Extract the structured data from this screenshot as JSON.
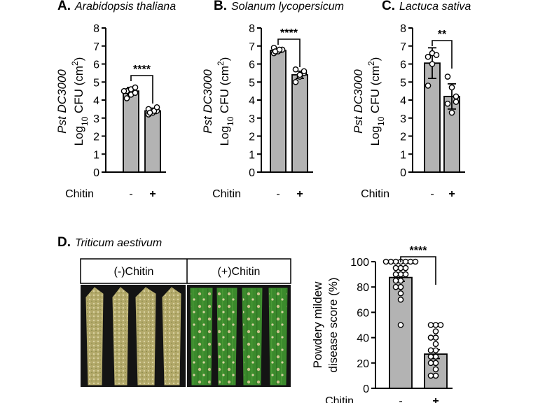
{
  "chart_data": [
    {
      "id": "A",
      "type": "bar",
      "panel_letter": "A.",
      "title": "Arabidopsis thaliana",
      "ylabel_italic": "Pst DC3000",
      "ylabel": "Log10 CFU (cm2)",
      "ylabel_parts": [
        "Log",
        "10",
        " CFU (cm",
        "2",
        ")"
      ],
      "ylim": [
        0,
        8
      ],
      "yticks": [
        "0",
        "1",
        "2",
        "3",
        "4",
        "5",
        "6",
        "7",
        "8"
      ],
      "xaxis_title": "Chitin",
      "categories": [
        "-",
        "+"
      ],
      "values": [
        4.5,
        3.4
      ],
      "errors": [
        0.2,
        0.15
      ],
      "points": [
        [
          4.1,
          4.3,
          4.4,
          4.5,
          4.6,
          4.7,
          4.5
        ],
        [
          3.2,
          3.3,
          3.4,
          3.5,
          3.4,
          3.6,
          3.3
        ]
      ],
      "significance": "****"
    },
    {
      "id": "B",
      "type": "bar",
      "panel_letter": "B.",
      "title": "Solanum lycopersicum",
      "ylabel_italic": "Pst DC3000",
      "ylabel": "Log10 CFU (cm2)",
      "ylabel_parts": [
        "Log",
        "10",
        " CFU (cm",
        "2",
        ")"
      ],
      "ylim": [
        0,
        8
      ],
      "yticks": [
        "0",
        "1",
        "2",
        "3",
        "4",
        "5",
        "6",
        "7",
        "8"
      ],
      "xaxis_title": "Chitin",
      "categories": [
        "-",
        "+"
      ],
      "values": [
        6.75,
        5.4
      ],
      "errors": [
        0.1,
        0.2
      ],
      "points": [
        [
          6.6,
          6.7,
          6.8,
          6.9,
          6.7,
          6.8
        ],
        [
          5.0,
          5.3,
          5.5,
          5.7,
          5.4,
          5.6
        ]
      ],
      "significance": "****"
    },
    {
      "id": "C",
      "type": "bar",
      "panel_letter": "C.",
      "title": "Lactuca sativa",
      "ylabel_italic": "Pst DC3000",
      "ylabel": "Log10 CFU (cm2)",
      "ylabel_parts": [
        "Log",
        "10",
        " CFU (cm",
        "2",
        ")"
      ],
      "ylim": [
        0,
        8
      ],
      "yticks": [
        "0",
        "1",
        "2",
        "3",
        "4",
        "5",
        "6",
        "7",
        "8"
      ],
      "xaxis_title": "Chitin",
      "categories": [
        "-",
        "+"
      ],
      "values": [
        6.05,
        4.2
      ],
      "errors": [
        0.85,
        0.7
      ],
      "points": [
        [
          6.4,
          6.6,
          6.5,
          4.8,
          6.0
        ],
        [
          5.3,
          4.7,
          4.2,
          3.8,
          3.3,
          3.9
        ]
      ],
      "significance": "**"
    },
    {
      "id": "D",
      "type": "bar",
      "panel_letter": "D.",
      "title": "Triticum aestivum",
      "ylabel_lines": [
        "Powdery mildew",
        "disease score (%)"
      ],
      "ylim": [
        0,
        100
      ],
      "yticks": [
        "0",
        "20",
        "40",
        "60",
        "80",
        "100"
      ],
      "xaxis_title": "Chitin",
      "categories": [
        "-",
        "+"
      ],
      "values": [
        87.5,
        27
      ],
      "errors": [
        3,
        3.5
      ],
      "points": [
        [
          100,
          100,
          100,
          100,
          100,
          100,
          100,
          95,
          95,
          95,
          90,
          90,
          90,
          85,
          85,
          80,
          80,
          75,
          70,
          50
        ],
        [
          50,
          50,
          50,
          45,
          40,
          40,
          35,
          30,
          30,
          25,
          25,
          20,
          20,
          15,
          10,
          10
        ]
      ],
      "significance": "****"
    }
  ],
  "leaf_panel": {
    "headers": [
      "(-)Chitin",
      "(+)Chitin"
    ],
    "minus_color": "#b7ad6e",
    "plus_color": "#3f8f2f",
    "background": "#141414"
  },
  "colors": {
    "bar_fill": "#b3b3b3",
    "stroke": "#000000",
    "point_fill": "#ffffff"
  }
}
